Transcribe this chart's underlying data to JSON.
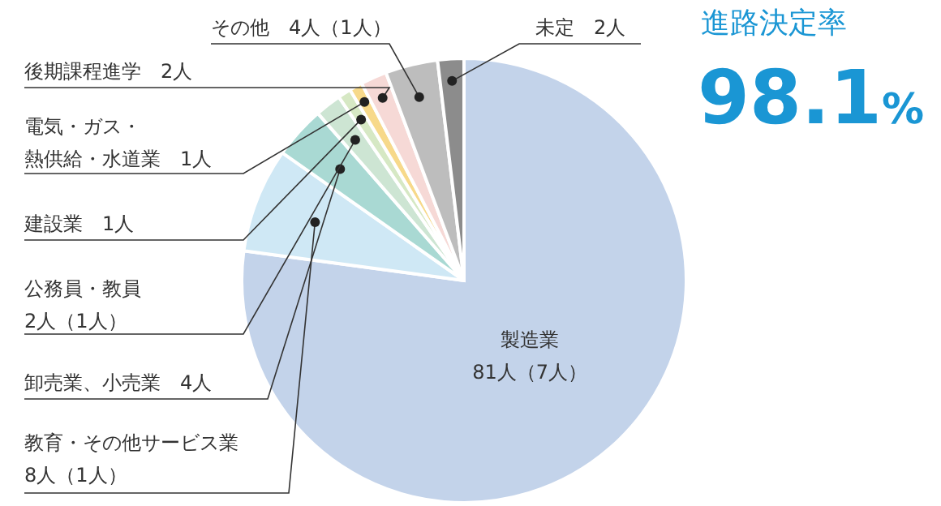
{
  "chart_data": {
    "type": "pie",
    "title": "進路決定率",
    "annotations": [
      "98.1%"
    ],
    "categories": [
      "製造業",
      "教育・その他サービス業",
      "卸売業、小売業",
      "公務員・教員",
      "建設業",
      "電気・ガス・熱供給・水道業",
      "後期課程進学",
      "その他",
      "未定"
    ],
    "values": [
      81,
      8,
      4,
      2,
      1,
      1,
      2,
      4,
      2
    ],
    "value_labels": [
      "81人（7人）",
      "8人（1人）",
      "4人",
      "2人（1人）",
      "1人",
      "1人",
      "2人",
      "4人（1人）",
      "2人"
    ],
    "colors": [
      "#c3d3ea",
      "#cfe8f5",
      "#a9d9d3",
      "#cde5d3",
      "#d6e8c4",
      "#f7d98a",
      "#f6d9d6",
      "#bdbdbd",
      "#8c8c8c"
    ]
  }
}
